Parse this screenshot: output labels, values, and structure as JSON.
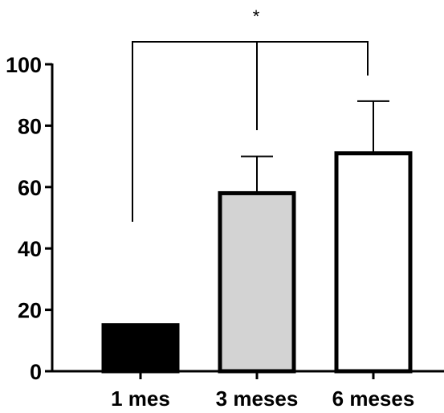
{
  "chart_data": {
    "type": "bar",
    "categories": [
      "1 mes",
      "3 meses",
      "6 meses"
    ],
    "values": [
      15,
      58,
      71
    ],
    "errors_upper": [
      15,
      70,
      88
    ],
    "bar_fill_colors": [
      "#000000",
      "#d3d3d3",
      "#ffffff"
    ],
    "bar_stroke_color": "#000000",
    "yticks": [
      "0",
      "20",
      "40",
      "60",
      "80",
      "100"
    ],
    "ylim": [
      0,
      100
    ],
    "title": "",
    "xlabel": "",
    "ylabel": "",
    "grid": false,
    "significance": {
      "label": "*",
      "from_category": "1 mes",
      "to_category": "6 meses",
      "middle_category": "3 meses"
    }
  }
}
